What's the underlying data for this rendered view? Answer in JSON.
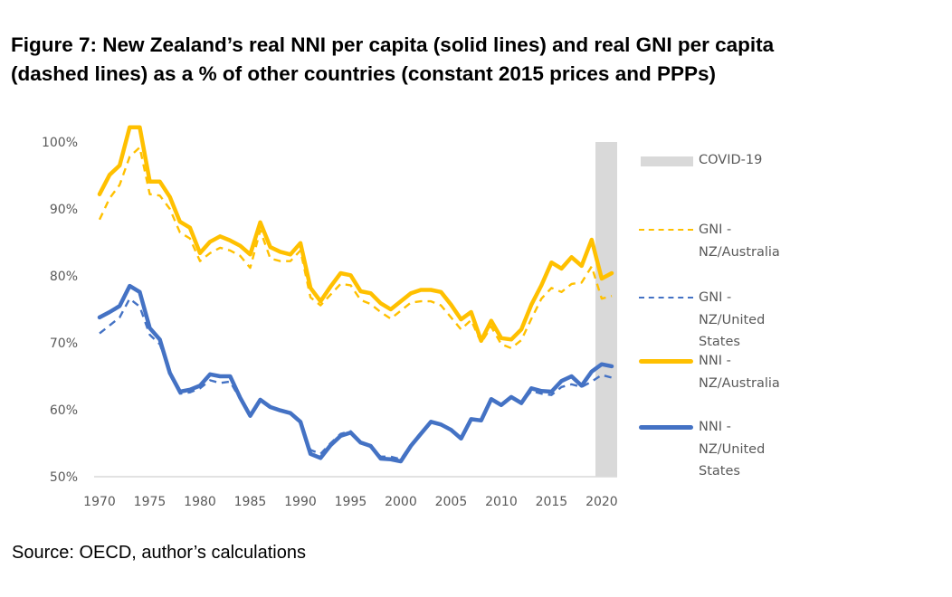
{
  "title_lines": [
    "Figure 7: New Zealand’s real NNI per capita (solid lines) and real GNI per capita",
    "(dashed lines) as a % of other countries (constant 2015 prices and PPPs)"
  ],
  "source": "Source: OECD, author’s calculations",
  "chart_data": {
    "type": "line",
    "title": "Figure 7: New Zealand’s real NNI per capita (solid lines) and real GNI per capita (dashed lines) as a % of other countries (constant 2015 prices and PPPs)",
    "xlabel": "",
    "ylabel": "",
    "x": [
      1970,
      1971,
      1972,
      1973,
      1974,
      1975,
      1976,
      1977,
      1978,
      1979,
      1980,
      1981,
      1982,
      1983,
      1984,
      1985,
      1986,
      1987,
      1988,
      1989,
      1990,
      1991,
      1992,
      1993,
      1994,
      1995,
      1996,
      1997,
      1998,
      1999,
      2000,
      2001,
      2002,
      2003,
      2004,
      2005,
      2006,
      2007,
      2008,
      2009,
      2010,
      2011,
      2012,
      2013,
      2014,
      2015,
      2016,
      2017,
      2018,
      2019,
      2020,
      2021
    ],
    "xlim": [
      1970,
      2021
    ],
    "ylim": [
      50,
      100
    ],
    "y_ticks": [
      "50%",
      "60%",
      "70%",
      "80%",
      "90%",
      "100%"
    ],
    "y_tick_values": [
      50,
      60,
      70,
      80,
      90,
      100
    ],
    "x_ticks": [
      "1970",
      "1975",
      "1980",
      "1985",
      "1990",
      "1995",
      "2000",
      "2005",
      "2010",
      "2015",
      "2020"
    ],
    "x_tick_values": [
      1970,
      1975,
      1980,
      1985,
      1990,
      1995,
      2000,
      2005,
      2010,
      2015,
      2020
    ],
    "grid": false,
    "legend_position": "right",
    "shaded_region": {
      "name": "COVID-19",
      "x_start": 2019.6,
      "x_end": 2021.7,
      "color": "#d9d9d9"
    },
    "series": [
      {
        "name": "GNI - NZ/Australia",
        "style": "dashed",
        "color": "#ffc000",
        "values": [
          88.4,
          91.6,
          93.6,
          97.8,
          99.2,
          92.2,
          92.0,
          90.0,
          86.5,
          85.6,
          82.2,
          83.4,
          84.2,
          83.8,
          83.0,
          81.2,
          86.8,
          82.6,
          82.2,
          82.2,
          83.8,
          76.8,
          75.6,
          77.2,
          78.8,
          78.6,
          76.4,
          75.8,
          74.6,
          73.6,
          74.8,
          76.0,
          76.2,
          76.2,
          75.6,
          73.8,
          72.0,
          73.4,
          70.0,
          72.4,
          69.8,
          69.2,
          70.4,
          73.6,
          76.6,
          78.2,
          77.6,
          78.8,
          79.0,
          81.4,
          76.6,
          77.0
        ]
      },
      {
        "name": "GNI - NZ/United States",
        "style": "dashed",
        "color": "#4472c4",
        "values": [
          71.4,
          72.6,
          73.8,
          76.6,
          75.4,
          71.2,
          69.8,
          65.6,
          62.4,
          62.6,
          63.2,
          64.4,
          64.0,
          64.2,
          61.6,
          59.2,
          61.4,
          60.4,
          59.8,
          59.4,
          58.0,
          54.0,
          53.4,
          55.0,
          56.4,
          56.8,
          55.2,
          54.4,
          53.0,
          53.0,
          52.6,
          54.8,
          56.6,
          58.2,
          57.8,
          57.0,
          55.8,
          58.6,
          58.4,
          61.4,
          60.6,
          61.8,
          61.0,
          62.8,
          62.4,
          62.2,
          63.4,
          63.8,
          63.4,
          64.2,
          65.2,
          64.8
        ]
      },
      {
        "name": "NNI - NZ/Australia",
        "style": "solid",
        "color": "#ffc000",
        "values": [
          92.2,
          95.1,
          96.5,
          102.2,
          102.2,
          94.1,
          94.1,
          91.8,
          88.1,
          87.2,
          83.4,
          85.1,
          85.9,
          85.3,
          84.5,
          83.2,
          88.0,
          84.3,
          83.6,
          83.2,
          84.9,
          78.2,
          76.2,
          78.4,
          80.4,
          80.1,
          77.7,
          77.4,
          75.9,
          75.0,
          76.2,
          77.4,
          77.9,
          77.9,
          77.6,
          75.7,
          73.5,
          74.6,
          70.3,
          73.3,
          70.7,
          70.5,
          72.0,
          75.7,
          78.6,
          82.0,
          81.1,
          82.8,
          81.5,
          85.4,
          79.6,
          80.4
        ]
      },
      {
        "name": "NNI - NZ/United States",
        "style": "solid",
        "color": "#4472c4",
        "values": [
          73.8,
          74.6,
          75.5,
          78.5,
          77.6,
          72.2,
          70.5,
          65.5,
          62.7,
          63.0,
          63.6,
          65.3,
          65.0,
          65.0,
          61.8,
          59.1,
          61.5,
          60.4,
          59.9,
          59.5,
          58.2,
          53.4,
          52.8,
          54.7,
          56.1,
          56.6,
          55.1,
          54.6,
          52.7,
          52.6,
          52.3,
          54.6,
          56.4,
          58.2,
          57.8,
          57.0,
          55.7,
          58.6,
          58.4,
          61.6,
          60.7,
          61.9,
          61.0,
          63.2,
          62.8,
          62.7,
          64.3,
          65.0,
          63.6,
          65.7,
          66.8,
          66.5
        ]
      }
    ]
  },
  "legend": [
    {
      "kind": "box",
      "label_lines": [
        "COVID-19"
      ],
      "color": "#d9d9d9"
    },
    {
      "kind": "dashed",
      "label_lines": [
        "GNI -",
        "NZ/Australia"
      ],
      "color": "#ffc000"
    },
    {
      "kind": "dashed",
      "label_lines": [
        "GNI -",
        "NZ/United",
        "States"
      ],
      "color": "#4472c4"
    },
    {
      "kind": "solid",
      "label_lines": [
        "NNI -",
        "NZ/Australia"
      ],
      "color": "#ffc000"
    },
    {
      "kind": "solid",
      "label_lines": [
        "NNI -",
        "NZ/United",
        "States"
      ],
      "color": "#4472c4"
    }
  ]
}
